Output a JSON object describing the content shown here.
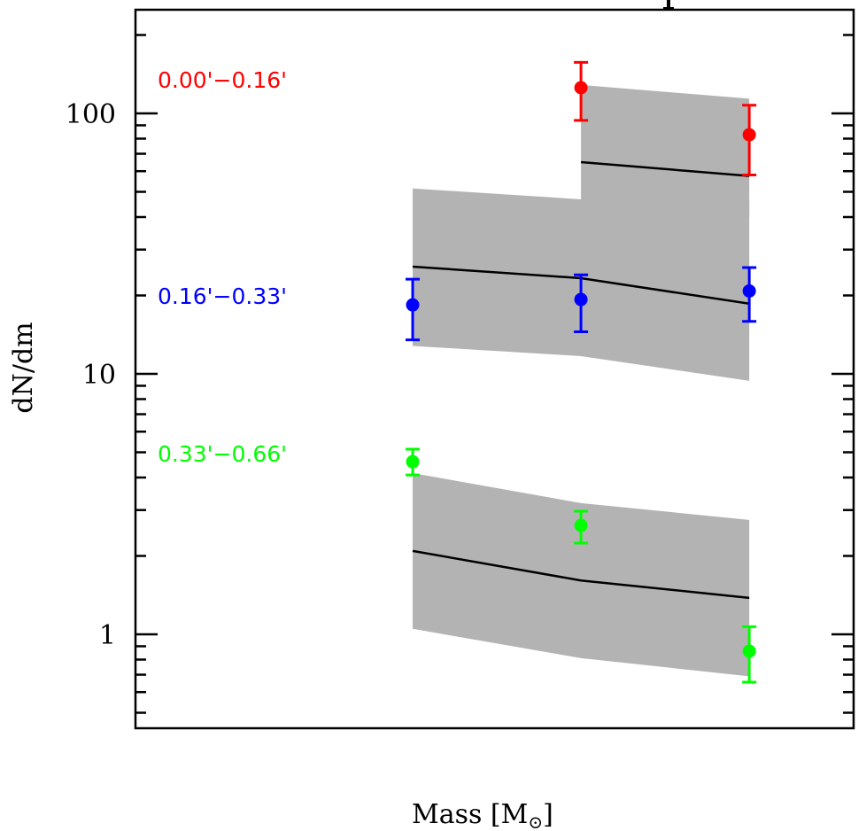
{
  "chart_data": {
    "type": "scatter",
    "title": "",
    "xlabel": "Mass [M",
    "xlabel_subscript": "⊙",
    "xlabel_close": "]",
    "ylabel": "dN/dm",
    "yscale": "log",
    "ylim": [
      0.436,
      250
    ],
    "xlim": [
      -0.647,
      3.62
    ],
    "x": [
      1,
      2,
      3
    ],
    "y_ticks": [
      {
        "value": 1,
        "label": "1"
      },
      {
        "value": 10,
        "label": "10"
      },
      {
        "value": 100,
        "label": "100"
      }
    ],
    "x_ticks": [],
    "grid": false,
    "series": [
      {
        "name": "0.00'−0.16'",
        "color": "#ff0000",
        "x": [
          2,
          3
        ],
        "values": [
          125.5,
          82.8
        ],
        "err_low": [
          94,
          58
        ],
        "err_high": [
          157,
          107.5
        ],
        "model_x": [
          2,
          3
        ],
        "model": [
          65,
          57.5
        ],
        "model_upper": [
          128.6,
          113.9
        ],
        "model_lower": [
          46.8,
          40
        ]
      },
      {
        "name": "0.16'−0.33'",
        "color": "#0000ff",
        "x": [
          1,
          2,
          3
        ],
        "values": [
          18.4,
          19.3,
          20.8
        ],
        "err_low": [
          13.5,
          14.5,
          15.9
        ],
        "err_high": [
          23.1,
          24.0,
          25.6
        ],
        "model_x": [
          1,
          2,
          3
        ],
        "model": [
          25.8,
          23.3,
          18.6
        ],
        "model_upper": [
          51.5,
          46.8,
          46.8
        ],
        "model_lower": [
          12.8,
          11.7,
          9.4
        ]
      },
      {
        "name": "0.33'−0.66'",
        "color": "#00ff00",
        "x": [
          1,
          2,
          3
        ],
        "values": [
          4.6,
          2.62,
          0.862
        ],
        "err_low": [
          4.09,
          2.24,
          0.655
        ],
        "err_high": [
          5.14,
          2.97,
          1.07
        ],
        "model_x": [
          1,
          2,
          3
        ],
        "model": [
          2.09,
          1.61,
          1.38
        ],
        "model_upper": [
          4.16,
          3.19,
          2.75
        ],
        "model_lower": [
          1.05,
          0.81,
          0.69
        ]
      }
    ],
    "band_color": "#b3b3b3"
  }
}
